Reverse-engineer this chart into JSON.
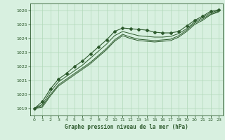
{
  "title": "Graphe pression niveau de la mer (hPa)",
  "background_color": "#d8f0e0",
  "grid_color": "#b0d8b8",
  "line_color": "#2d5a2d",
  "xlim": [
    -0.5,
    23.5
  ],
  "ylim": [
    1018.5,
    1026.5
  ],
  "yticks": [
    1019,
    1020,
    1021,
    1022,
    1023,
    1024,
    1025,
    1026
  ],
  "xticks": [
    0,
    1,
    2,
    3,
    4,
    5,
    6,
    7,
    8,
    9,
    10,
    11,
    12,
    13,
    14,
    15,
    16,
    17,
    18,
    19,
    20,
    21,
    22,
    23
  ],
  "series_with_markers": [
    1019.0,
    1019.5,
    1020.4,
    1021.1,
    1021.5,
    1022.0,
    1022.4,
    1022.9,
    1023.4,
    1023.9,
    1024.5,
    1024.75,
    1024.7,
    1024.65,
    1024.6,
    1024.45,
    1024.4,
    1024.4,
    1024.5,
    1024.9,
    1025.3,
    1025.6,
    1025.95,
    1026.05
  ],
  "series2": [
    1019.0,
    1019.3,
    1020.2,
    1020.9,
    1021.3,
    1021.7,
    1022.1,
    1022.6,
    1023.1,
    1023.6,
    1024.2,
    1024.5,
    1024.35,
    1024.2,
    1024.15,
    1024.1,
    1024.1,
    1024.15,
    1024.35,
    1024.7,
    1025.2,
    1025.5,
    1025.85,
    1026.0
  ],
  "series3": [
    1019.0,
    1019.2,
    1020.0,
    1020.7,
    1021.1,
    1021.5,
    1021.9,
    1022.3,
    1022.8,
    1023.3,
    1023.9,
    1024.3,
    1024.1,
    1023.95,
    1023.9,
    1023.85,
    1023.9,
    1023.95,
    1024.2,
    1024.6,
    1025.1,
    1025.4,
    1025.75,
    1025.95
  ],
  "series4": [
    1019.0,
    1019.1,
    1019.9,
    1020.6,
    1021.0,
    1021.4,
    1021.8,
    1022.2,
    1022.7,
    1023.2,
    1023.8,
    1024.2,
    1024.0,
    1023.85,
    1023.8,
    1023.75,
    1023.8,
    1023.85,
    1024.1,
    1024.5,
    1025.0,
    1025.3,
    1025.7,
    1025.9
  ]
}
